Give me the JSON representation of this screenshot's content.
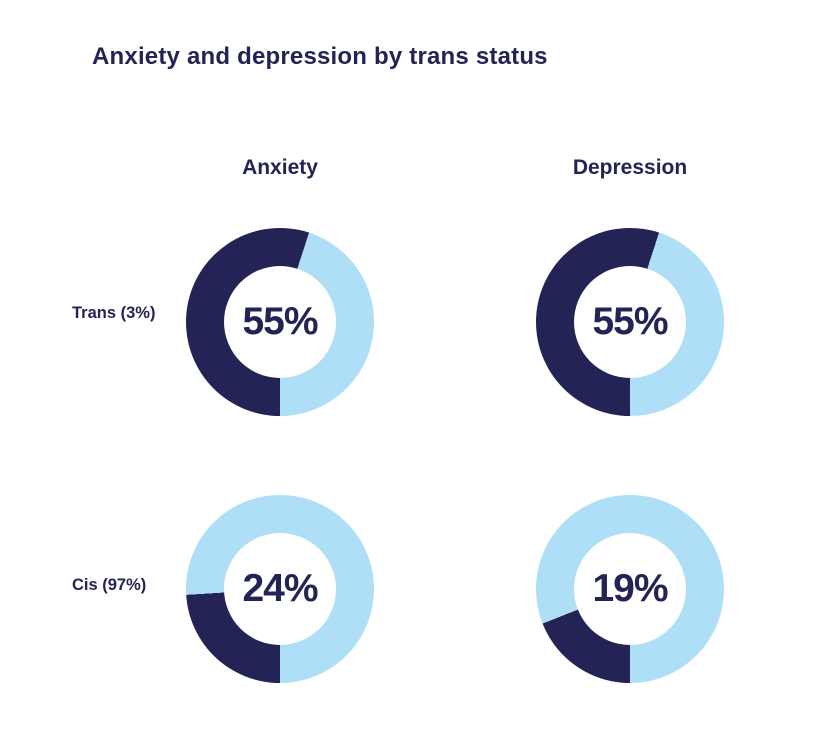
{
  "title": "Anxiety and depression by trans status",
  "colors": {
    "navy": "#242355",
    "light_blue": "#afdff6",
    "background": "#ffffff"
  },
  "chart_data": {
    "type": "pie",
    "variant": "donut-grid-2x2",
    "title": "Anxiety and depression by trans status",
    "columns": [
      "Anxiety",
      "Depression"
    ],
    "rows": [
      "Trans (3%)",
      "Cis (97%)"
    ],
    "series": [
      {
        "row": "Trans (3%)",
        "column": "Anxiety",
        "value": 55,
        "label": "55%"
      },
      {
        "row": "Trans (3%)",
        "column": "Depression",
        "value": 55,
        "label": "55%"
      },
      {
        "row": "Cis (97%)",
        "column": "Anxiety",
        "value": 24,
        "label": "24%"
      },
      {
        "row": "Cis (97%)",
        "column": "Depression",
        "value": 19,
        "label": "19%"
      }
    ],
    "segment_colors": {
      "value": "#242355",
      "remainder": "#afdff6"
    },
    "start_angle_deg": 180,
    "direction": "clockwise",
    "legend": "none",
    "grid": "off"
  }
}
